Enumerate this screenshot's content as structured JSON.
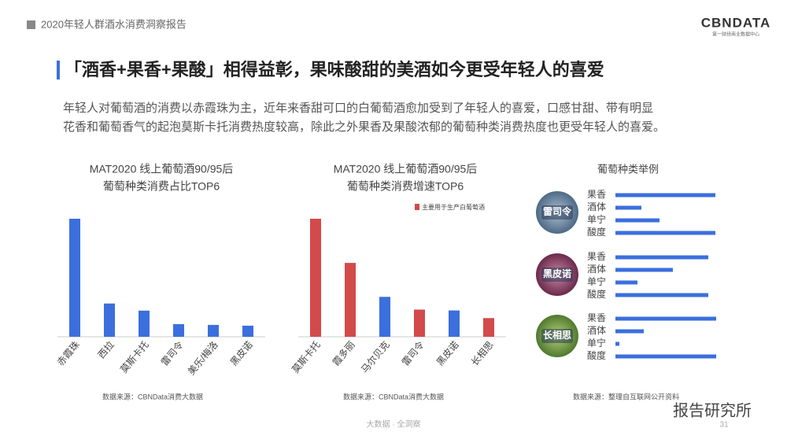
{
  "header": {
    "report": "2020年轻人群酒水消费洞察报告",
    "logo": "CBNDATA",
    "logo_sub": "第一财经商业数据中心"
  },
  "headline": "「酒香+果香+果酸」相得益彰，果味酸甜的美酒如今更受年轻人的喜爱",
  "body": [
    "年轻人对葡萄酒的消费以赤霞珠为主，近年来香甜可口的白葡萄酒愈加受到了年轻人的喜爱，口感甘甜、带有明显",
    "花香和葡萄香气的起泡莫斯卡托消费热度较高，除此之外果香及果酸浓郁的葡萄种类消费热度也更受年轻人的喜爱。"
  ],
  "footer": {
    "tagline": "大数据 · 全洞察",
    "page": "31",
    "watermark": "报告研究所"
  },
  "chart_data": [
    {
      "type": "bar",
      "title": [
        "MAT2020 线上葡萄酒90/95后",
        "葡萄种类消费占比TOP6"
      ],
      "categories": [
        "赤霞珠",
        "西拉",
        "莫斯卡托",
        "雷司令",
        "美乐/梅洛",
        "黑皮诺"
      ],
      "values": [
        149,
        42,
        33,
        16,
        15,
        14
      ],
      "color": "#3b6fde",
      "source": "数据来源：CBNData消费大数据"
    },
    {
      "type": "bar",
      "title": [
        "MAT2020 线上葡萄酒90/95后",
        "葡萄种类消费增速TOP6"
      ],
      "categories": [
        "莫斯卡托",
        "霞多丽",
        "马尔贝克",
        "雷司令",
        "黑皮诺",
        "长相思"
      ],
      "values": [
        139,
        87,
        47,
        32,
        31,
        22
      ],
      "colors": [
        "#d24a4a",
        "#d24a4a",
        "#3b6fde",
        "#d24a4a",
        "#3b6fde",
        "#d24a4a"
      ],
      "legend": {
        "name": "主要用于生产白葡萄酒",
        "color": "#d24a4a"
      },
      "source": "数据来源：CBNData消费大数据"
    },
    {
      "type": "hbar-groups",
      "title": "葡萄种类举例",
      "categories": [
        "果香",
        "酒体",
        "单宁",
        "酸度"
      ],
      "color": "#3b6fde",
      "series": [
        {
          "name": "雷司令",
          "values": [
            127,
            33,
            56,
            127
          ]
        },
        {
          "name": "黑皮诺",
          "values": [
            118,
            73,
            28,
            118
          ]
        },
        {
          "name": "长相思",
          "values": [
            128,
            36,
            5,
            128
          ]
        }
      ],
      "source": "数据来源：整理自互联网公开资料"
    }
  ]
}
